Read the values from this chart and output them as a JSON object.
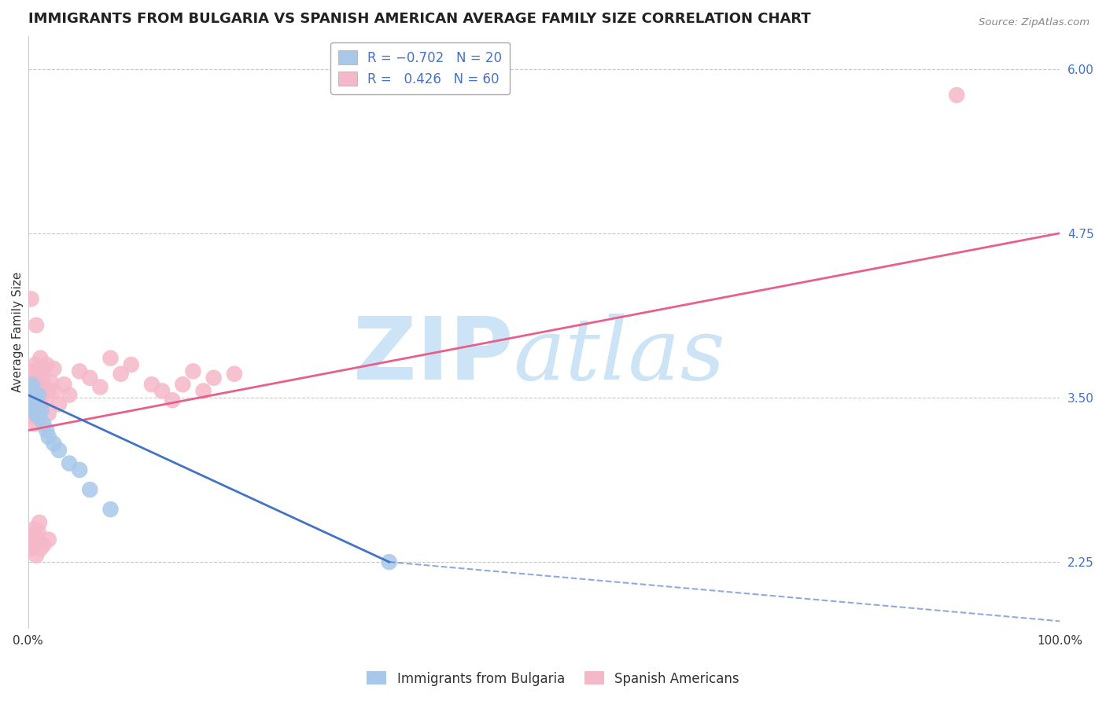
{
  "title": "IMMIGRANTS FROM BULGARIA VS SPANISH AMERICAN AVERAGE FAMILY SIZE CORRELATION CHART",
  "source_text": "Source: ZipAtlas.com",
  "ylabel": "Average Family Size",
  "xlim": [
    0.0,
    100.0
  ],
  "ylim": [
    1.75,
    6.25
  ],
  "yticks": [
    2.25,
    3.5,
    4.75,
    6.0
  ],
  "xticklabels": [
    "0.0%",
    "100.0%"
  ],
  "grid_color": "#c8c8c8",
  "background_color": "#ffffff",
  "series": [
    {
      "label": "Immigrants from Bulgaria",
      "R": -0.702,
      "N": 20,
      "color_scatter": "#a8c8ea",
      "color_line": "#4472c4",
      "points_x": [
        0.2,
        0.3,
        0.4,
        0.5,
        0.6,
        0.7,
        0.8,
        1.0,
        1.1,
        1.3,
        1.5,
        1.8,
        2.0,
        2.5,
        3.0,
        4.0,
        5.0,
        6.0,
        8.0,
        35.0
      ],
      "points_y": [
        3.55,
        3.45,
        3.6,
        3.42,
        3.48,
        3.38,
        3.5,
        3.52,
        3.35,
        3.4,
        3.3,
        3.25,
        3.2,
        3.15,
        3.1,
        3.0,
        2.95,
        2.8,
        2.65,
        2.25
      ],
      "line_x0": 0.0,
      "line_y0": 3.52,
      "line_x1": 35.0,
      "line_y1": 2.25,
      "line_x1_dashed": 100.0,
      "line_y1_dashed": 1.8
    },
    {
      "label": "Spanish Americans",
      "R": 0.426,
      "N": 60,
      "color_scatter": "#f5b8c8",
      "color_line": "#e8608a",
      "points_x": [
        0.2,
        0.3,
        0.3,
        0.4,
        0.4,
        0.5,
        0.5,
        0.6,
        0.6,
        0.7,
        0.7,
        0.8,
        0.8,
        0.9,
        1.0,
        1.0,
        1.1,
        1.2,
        1.2,
        1.3,
        1.4,
        1.5,
        1.6,
        1.7,
        1.8,
        2.0,
        2.0,
        2.2,
        2.5,
        2.5,
        3.0,
        3.5,
        4.0,
        5.0,
        6.0,
        7.0,
        8.0,
        9.0,
        10.0,
        12.0,
        13.0,
        14.0,
        15.0,
        16.0,
        17.0,
        18.0,
        20.0,
        0.3,
        0.4,
        0.5,
        0.6,
        0.7,
        0.8,
        0.9,
        1.0,
        1.1,
        1.2,
        1.5,
        2.0,
        90.0
      ],
      "points_y": [
        3.45,
        3.55,
        4.25,
        3.38,
        3.65,
        3.7,
        3.42,
        3.6,
        3.35,
        3.75,
        3.3,
        3.55,
        4.05,
        3.48,
        3.6,
        3.4,
        3.7,
        3.5,
        3.8,
        3.55,
        3.65,
        3.72,
        3.58,
        3.48,
        3.75,
        3.55,
        3.38,
        3.62,
        3.55,
        3.72,
        3.45,
        3.6,
        3.52,
        3.7,
        3.65,
        3.58,
        3.8,
        3.68,
        3.75,
        3.6,
        3.55,
        3.48,
        3.6,
        3.7,
        3.55,
        3.65,
        3.68,
        2.35,
        2.45,
        2.4,
        2.5,
        2.38,
        2.3,
        2.42,
        2.48,
        2.55,
        2.35,
        2.38,
        2.42,
        5.8
      ],
      "line_x0": 0.0,
      "line_y0": 3.25,
      "line_x1": 100.0,
      "line_y1": 4.75
    }
  ],
  "watermark_zip": "ZIP",
  "watermark_atlas": "atlas",
  "watermark_color": "#cce4f5",
  "title_fontsize": 13,
  "axis_label_fontsize": 11,
  "tick_fontsize": 11,
  "right_ytick_color": "#4472c4",
  "legend_label_color": "#4472c4"
}
